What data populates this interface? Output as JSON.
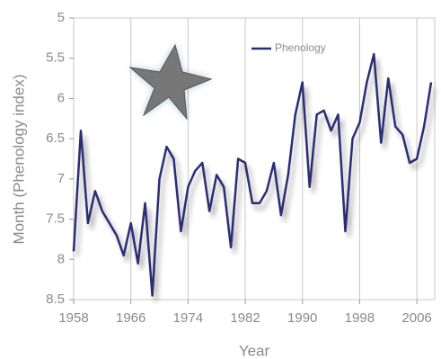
{
  "chart_data": {
    "type": "line",
    "x_label": "Year",
    "y_label": "Month (Phenology index)",
    "x": [
      1958,
      1959,
      1960,
      1961,
      1962,
      1963,
      1964,
      1965,
      1966,
      1967,
      1968,
      1969,
      1970,
      1971,
      1972,
      1973,
      1974,
      1975,
      1976,
      1977,
      1978,
      1979,
      1980,
      1981,
      1982,
      1983,
      1984,
      1985,
      1986,
      1987,
      1988,
      1989,
      1990,
      1991,
      1992,
      1993,
      1994,
      1995,
      1996,
      1997,
      1998,
      1999,
      2000,
      2001,
      2002,
      2003,
      2004,
      2005,
      2006,
      2007,
      2008
    ],
    "series": [
      {
        "name": "Phenology",
        "color": "#2b2d72",
        "values": [
          7.9,
          6.4,
          7.55,
          7.15,
          7.4,
          7.55,
          7.7,
          7.95,
          7.55,
          8.05,
          7.3,
          8.45,
          7.0,
          6.6,
          6.75,
          7.65,
          7.1,
          6.9,
          6.8,
          7.4,
          6.95,
          7.1,
          7.85,
          6.75,
          6.8,
          7.3,
          7.3,
          7.15,
          6.8,
          7.45,
          6.95,
          6.2,
          5.8,
          7.1,
          6.2,
          6.15,
          6.4,
          6.2,
          7.65,
          6.5,
          6.3,
          5.8,
          5.45,
          6.55,
          5.75,
          6.35,
          6.45,
          6.8,
          6.75,
          6.35,
          5.8
        ]
      }
    ],
    "xlim": [
      1958,
      2008.5
    ],
    "xticks": [
      1958,
      1966,
      1974,
      1982,
      1990,
      1998,
      2006
    ],
    "ylim": [
      8.5,
      5
    ],
    "yticks": [
      5,
      5.5,
      6,
      6.5,
      7,
      7.5,
      8,
      8.5
    ],
    "grid": "x",
    "legend": "top"
  }
}
